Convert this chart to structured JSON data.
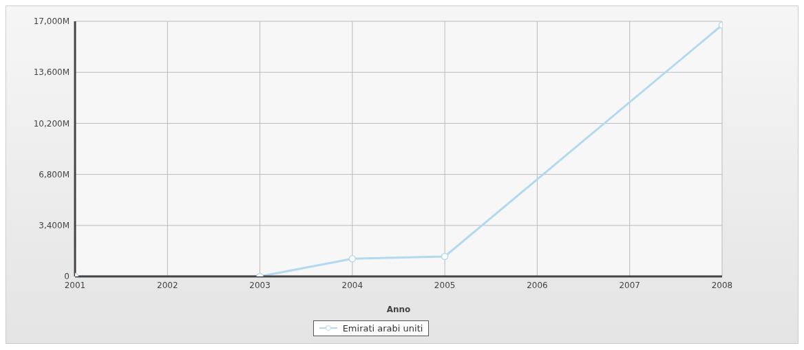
{
  "chart_data": {
    "type": "line",
    "xlabel": "Anno",
    "x": [
      2001,
      2003,
      2004,
      2005,
      2008
    ],
    "series": [
      {
        "name": "Emirati arabi uniti",
        "color": "#b3d9f0",
        "values": [
          0,
          0,
          1180,
          1330,
          16750
        ]
      }
    ],
    "xlim": [
      2001,
      2008
    ],
    "xticks": [
      2001,
      2002,
      2003,
      2004,
      2005,
      2006,
      2007,
      2008
    ],
    "ylim": [
      0,
      17000
    ],
    "yticks": [
      {
        "value": 0,
        "label": "0"
      },
      {
        "value": 3400,
        "label": "3,400M"
      },
      {
        "value": 6800,
        "label": "6,800M"
      },
      {
        "value": 10200,
        "label": "10,200M"
      },
      {
        "value": 13600,
        "label": "13,600M"
      },
      {
        "value": 17000,
        "label": "17,000M"
      }
    ],
    "grid": true,
    "legend": "bottom",
    "marker": "circle",
    "line_style": "solid"
  }
}
